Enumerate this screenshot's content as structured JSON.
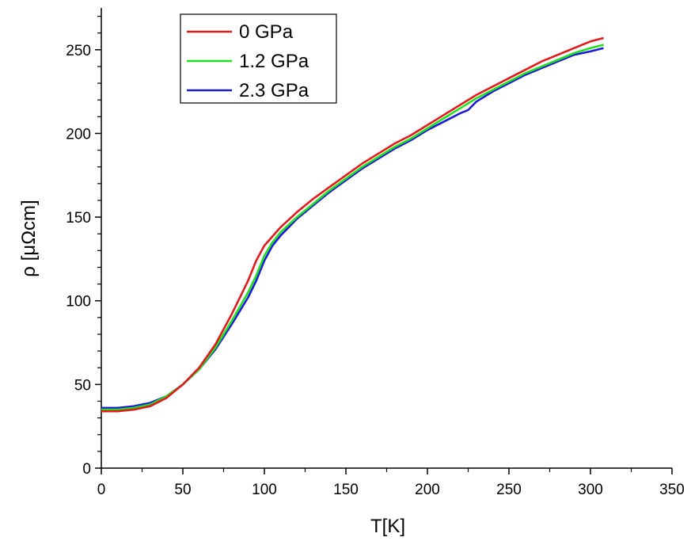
{
  "chart_data": {
    "type": "line",
    "xlabel": "T[K]",
    "ylabel": "ρ [μΩcm]",
    "xlim": [
      0,
      350
    ],
    "ylim": [
      0,
      275
    ],
    "x_ticks": [
      0,
      50,
      100,
      150,
      200,
      250,
      300,
      350
    ],
    "y_ticks": [
      0,
      50,
      100,
      150,
      200,
      250
    ],
    "grid": false,
    "legend_position": "top-left",
    "series": [
      {
        "name": "0 GPa",
        "color": "#e31a1c",
        "x": [
          0,
          10,
          20,
          30,
          40,
          50,
          60,
          70,
          80,
          90,
          95,
          100,
          110,
          120,
          130,
          140,
          150,
          160,
          170,
          180,
          190,
          200,
          210,
          220,
          230,
          240,
          250,
          260,
          270,
          280,
          290,
          300,
          308
        ],
        "y": [
          34,
          34,
          35,
          37,
          42,
          50,
          60,
          74,
          92,
          112,
          124,
          133,
          144,
          153,
          161,
          168,
          175,
          182,
          188,
          194,
          199,
          205,
          211,
          217,
          223,
          228,
          233,
          238,
          243,
          247,
          251,
          255,
          257
        ]
      },
      {
        "name": "1.2 GPa",
        "color": "#22e01e",
        "x": [
          0,
          10,
          20,
          30,
          40,
          50,
          60,
          70,
          80,
          90,
          95,
          100,
          105,
          110,
          120,
          130,
          140,
          150,
          160,
          170,
          180,
          190,
          200,
          210,
          220,
          230,
          240,
          250,
          260,
          270,
          280,
          290,
          300,
          308
        ],
        "y": [
          35,
          35,
          36,
          38,
          43,
          50,
          59,
          72,
          88,
          105,
          115,
          127,
          135,
          141,
          150,
          158,
          166,
          173,
          180,
          186,
          192,
          197,
          203,
          209,
          215,
          221,
          226,
          231,
          236,
          240,
          244,
          248,
          251,
          253
        ]
      },
      {
        "name": "2.3 GPa",
        "color": "#1c1cd8",
        "x": [
          0,
          10,
          20,
          30,
          40,
          50,
          60,
          70,
          80,
          90,
          95,
          100,
          105,
          110,
          120,
          130,
          140,
          150,
          160,
          170,
          180,
          190,
          200,
          210,
          220,
          225,
          230,
          235,
          240,
          250,
          260,
          270,
          280,
          290,
          300,
          308
        ],
        "y": [
          36,
          36,
          37,
          39,
          43,
          50,
          59,
          71,
          86,
          102,
          112,
          124,
          133,
          139,
          149,
          157,
          165,
          172,
          179,
          185,
          191,
          196,
          202,
          207,
          212,
          214,
          219,
          222,
          225,
          230,
          235,
          239,
          243,
          247,
          249,
          251
        ]
      }
    ]
  }
}
